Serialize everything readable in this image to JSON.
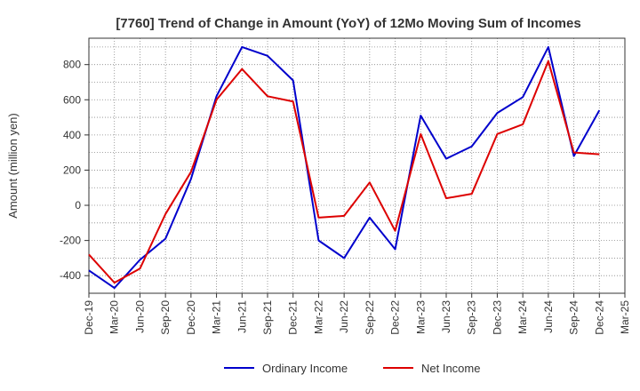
{
  "chart_data": {
    "type": "line",
    "title": "[7760]  Trend of Change in Amount (YoY) of 12Mo Moving Sum of Incomes",
    "xlabel": "",
    "ylabel": "Amount (million yen)",
    "ylim": [
      -500,
      950
    ],
    "yticks": [
      -400,
      -200,
      0,
      200,
      400,
      600,
      800
    ],
    "categories": [
      "Dec-19",
      "Mar-20",
      "Jun-20",
      "Sep-20",
      "Dec-20",
      "Mar-21",
      "Jun-21",
      "Sep-21",
      "Dec-21",
      "Mar-22",
      "Jun-22",
      "Sep-22",
      "Dec-22",
      "Mar-23",
      "Jun-23",
      "Sep-23",
      "Dec-23",
      "Mar-24",
      "Jun-24",
      "Sep-24",
      "Dec-24",
      "Mar-25"
    ],
    "grid": true,
    "legend_position": "bottom",
    "series": [
      {
        "name": "Ordinary Income",
        "color": "#0000cc",
        "values": [
          -370,
          -470,
          -310,
          -190,
          150,
          620,
          900,
          850,
          710,
          -200,
          -300,
          -70,
          -250,
          510,
          265,
          335,
          525,
          615,
          900,
          280,
          540,
          null
        ]
      },
      {
        "name": "Net Income",
        "color": "#dd0000",
        "values": [
          -280,
          -440,
          -360,
          -50,
          190,
          600,
          775,
          620,
          590,
          -70,
          -60,
          130,
          -145,
          405,
          40,
          65,
          405,
          460,
          820,
          300,
          290,
          null
        ]
      }
    ]
  }
}
